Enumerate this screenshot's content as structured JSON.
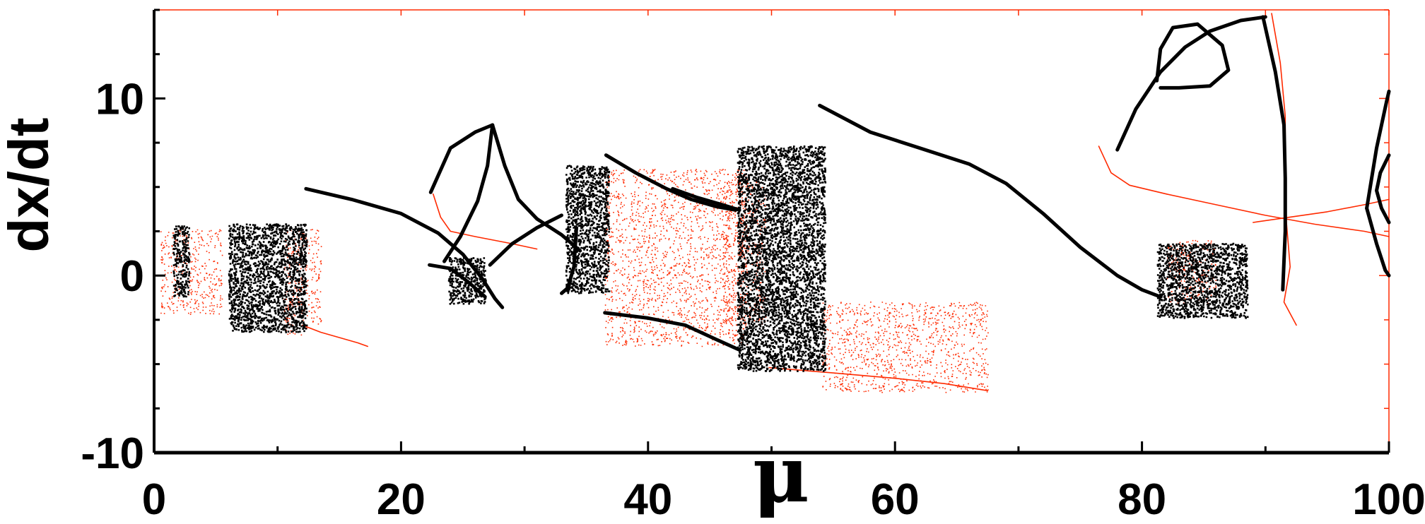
{
  "chart_data": {
    "type": "scatter",
    "title": "",
    "xlabel": "μ",
    "ylabel": "dx/dt",
    "xlim": [
      0,
      100
    ],
    "ylim": [
      -10,
      15
    ],
    "x_ticks": [
      0,
      20,
      40,
      60,
      80,
      100
    ],
    "y_ticks": [
      -10,
      0,
      10
    ],
    "x_tick_labels": [
      "0",
      "20",
      "40",
      "60",
      "80",
      "100"
    ],
    "y_tick_labels": [
      "-10",
      "0",
      "10"
    ],
    "grid": false,
    "legend": "none",
    "colors": {
      "black_series": "#000000",
      "red_series": "#ff2a00",
      "axes": "#000000",
      "frame": "#ff2a00"
    },
    "series": [
      {
        "color": "#000000",
        "periodic_branches": [
          [
            [
              12.3,
              4.9
            ],
            [
              16,
              4.3
            ],
            [
              20,
              3.5
            ],
            [
              23,
              2.4
            ],
            [
              25,
              1.2
            ],
            [
              26.6,
              -0.2
            ],
            [
              27.6,
              -1.3
            ],
            [
              28.2,
              -1.8
            ]
          ],
          [
            [
              22.3,
              0.6
            ],
            [
              24,
              0.4
            ],
            [
              25.5,
              -0.4
            ],
            [
              26.8,
              -1.2
            ]
          ],
          [
            [
              22.4,
              4.7
            ],
            [
              24,
              7.2
            ],
            [
              26,
              8.1
            ],
            [
              27.4,
              8.5
            ]
          ],
          [
            [
              27.4,
              8.5
            ],
            [
              28.4,
              6.2
            ],
            [
              29.5,
              4.3
            ],
            [
              31,
              3.2
            ],
            [
              33,
              2.3
            ],
            [
              34.5,
              1.4
            ]
          ],
          [
            [
              27.4,
              8.5
            ],
            [
              27.0,
              6.2
            ],
            [
              26.2,
              4.2
            ],
            [
              24.8,
              2.2
            ],
            [
              23.5,
              0.8
            ]
          ],
          [
            [
              27.2,
              0.6
            ],
            [
              29,
              1.8
            ],
            [
              31,
              2.7
            ],
            [
              33,
              3.4
            ]
          ],
          [
            [
              34.2,
              2.7
            ],
            [
              34,
              0.5
            ],
            [
              33.5,
              -0.7
            ],
            [
              33,
              -1.0
            ]
          ],
          [
            [
              36.5,
              -2.1
            ],
            [
              40,
              -2.4
            ],
            [
              43,
              -2.8
            ],
            [
              45.5,
              -3.6
            ],
            [
              47.4,
              -4.2
            ]
          ],
          [
            [
              36.6,
              6.8
            ],
            [
              39,
              5.8
            ],
            [
              41.5,
              4.9
            ],
            [
              43.5,
              4.3
            ],
            [
              45.5,
              3.9
            ],
            [
              47.1,
              3.7
            ]
          ],
          [
            [
              42,
              4.9
            ],
            [
              44,
              4.4
            ],
            [
              46,
              4.0
            ],
            [
              47.4,
              3.7
            ]
          ],
          [
            [
              53.9,
              9.6
            ],
            [
              58,
              8.1
            ],
            [
              62,
              7.2
            ],
            [
              66,
              6.3
            ],
            [
              69,
              5.2
            ],
            [
              72,
              3.5
            ],
            [
              75,
              1.6
            ],
            [
              78,
              0.0
            ],
            [
              80,
              -0.8
            ],
            [
              81.5,
              -1.2
            ]
          ],
          [
            [
              78.0,
              7.1
            ],
            [
              79.5,
              9.4
            ],
            [
              81.5,
              11.5
            ],
            [
              83.5,
              12.9
            ],
            [
              85.5,
              13.8
            ],
            [
              88,
              14.4
            ],
            [
              90,
              14.6
            ]
          ],
          [
            [
              81.2,
              11.0
            ],
            [
              81.5,
              12.8
            ],
            [
              82.5,
              14.0
            ],
            [
              84.5,
              14.2
            ],
            [
              86.5,
              13.0
            ],
            [
              87,
              11.6
            ],
            [
              85.5,
              10.7
            ],
            [
              83.0,
              10.6
            ],
            [
              81.5,
              10.6
            ]
          ],
          [
            [
              89.8,
              14.6
            ],
            [
              90.8,
              11.5
            ],
            [
              91.5,
              8.5
            ],
            [
              91.6,
              5.5
            ],
            [
              91.6,
              2.5
            ],
            [
              91.4,
              -0.8
            ]
          ],
          [
            [
              98.2,
              3.8
            ],
            [
              99.0,
              7.2
            ],
            [
              99.8,
              9.8
            ],
            [
              100,
              10.4
            ]
          ],
          [
            [
              98.2,
              3.8
            ],
            [
              99.0,
              1.8
            ],
            [
              99.7,
              0.3
            ],
            [
              100,
              0.0
            ]
          ],
          [
            [
              100,
              6.8
            ],
            [
              99.3,
              5.8
            ],
            [
              99.0,
              4.8
            ],
            [
              99.4,
              3.8
            ],
            [
              100,
              3.0
            ]
          ]
        ],
        "chaotic_bands": [
          {
            "x_range": [
              1.5,
              2.8
            ],
            "y_range": [
              -1.2,
              2.8
            ]
          },
          {
            "x_range": [
              6,
              12.3
            ],
            "y_range": [
              -3.2,
              2.9
            ]
          },
          {
            "x_range": [
              23.8,
              26.8
            ],
            "y_range": [
              -1.6,
              1.0
            ]
          },
          {
            "x_range": [
              33.3,
              36.8
            ],
            "y_range": [
              -1.0,
              6.2
            ]
          },
          {
            "x_range": [
              47.2,
              54.3
            ],
            "y_range": [
              -5.4,
              7.3
            ]
          },
          {
            "x_range": [
              81.2,
              88.5
            ],
            "y_range": [
              -2.4,
              1.8
            ]
          }
        ]
      },
      {
        "color": "#ff2a00",
        "periodic_branches": [
          [
            [
              12.0,
              -2.8
            ],
            [
              13.5,
              -3.2
            ],
            [
              15,
              -3.5
            ],
            [
              16.5,
              -3.8
            ],
            [
              17.3,
              -4.0
            ]
          ],
          [
            [
              22.6,
              4.6
            ],
            [
              23.2,
              3.3
            ],
            [
              24,
              2.5
            ],
            [
              26,
              2.2
            ],
            [
              29,
              1.8
            ],
            [
              31,
              1.5
            ]
          ],
          [
            [
              49.8,
              -5.2
            ],
            [
              55,
              -5.5
            ],
            [
              60,
              -5.8
            ],
            [
              64,
              -6.1
            ],
            [
              67.5,
              -6.5
            ]
          ],
          [
            [
              76.5,
              7.3
            ],
            [
              77.5,
              5.8
            ],
            [
              79,
              5.1
            ],
            [
              82,
              4.6
            ],
            [
              86,
              4.0
            ],
            [
              90,
              3.4
            ],
            [
              94,
              2.9
            ],
            [
              98,
              2.5
            ],
            [
              100,
              2.2
            ]
          ],
          [
            [
              89,
              3.0
            ],
            [
              92,
              3.3
            ],
            [
              95,
              3.6
            ],
            [
              98,
              4.0
            ],
            [
              100,
              4.3
            ]
          ],
          [
            [
              90.5,
              14.8
            ],
            [
              91.2,
              12.0
            ],
            [
              91.6,
              9.0
            ],
            [
              91.6,
              6.0
            ],
            [
              91.7,
              3.0
            ],
            [
              92.0,
              0.5
            ],
            [
              91.5,
              -1.5
            ],
            [
              92.5,
              -2.8
            ]
          ]
        ],
        "chaotic_bands": [
          {
            "x_range": [
              0.5,
              5.5
            ],
            "y_range": [
              -2.2,
              2.6
            ]
          },
          {
            "x_range": [
              10.5,
              13.5
            ],
            "y_range": [
              -3.4,
              2.6
            ]
          },
          {
            "x_range": [
              36.5,
              48
            ],
            "y_range": [
              -4.0,
              6.0
            ]
          },
          {
            "x_range": [
              46,
              49.5
            ],
            "y_range": [
              -2.8,
              5.4
            ]
          },
          {
            "x_range": [
              54,
              67.5
            ],
            "y_range": [
              -6.6,
              -1.5
            ]
          },
          {
            "x_range": [
              82,
              86
            ],
            "y_range": [
              -1.6,
              2.0
            ]
          }
        ]
      }
    ]
  }
}
